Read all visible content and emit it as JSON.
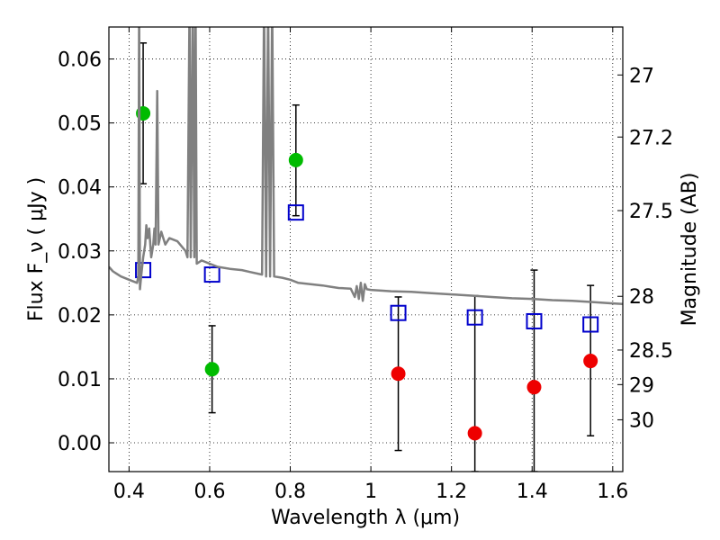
{
  "chart_data": {
    "type": "scatter",
    "xlabel": "Wavelength  λ (μm)",
    "ylabel": "Flux  F_ν  ( μJy )",
    "ylabel_right": "Magnitude (AB)",
    "xlim": [
      0.35,
      1.625
    ],
    "ylim": [
      -0.0045,
      0.065
    ],
    "grid": true,
    "x_ticks": [
      0.4,
      0.6,
      0.8,
      1.0,
      1.2,
      1.4,
      1.6
    ],
    "x_tick_labels": [
      "0.4",
      "0.6",
      "0.8",
      "1",
      "1.2",
      "1.4",
      "1.6"
    ],
    "y_ticks": [
      0.0,
      0.01,
      0.02,
      0.03,
      0.04,
      0.05,
      0.06
    ],
    "y_tick_labels": [
      "0.00",
      "0.01",
      "0.02",
      "0.03",
      "0.04",
      "0.05",
      "0.06"
    ],
    "right_ticks": [
      {
        "label": "27",
        "flux": 0.0575
      },
      {
        "label": "27.2",
        "flux": 0.0478
      },
      {
        "label": "27.5",
        "flux": 0.0363
      },
      {
        "label": "28",
        "flux": 0.0229
      },
      {
        "label": "28.5",
        "flux": 0.0145
      },
      {
        "label": "29",
        "flux": 0.0091
      },
      {
        "label": "30",
        "flux": 0.0036
      }
    ],
    "series": [
      {
        "marker": "circle",
        "color": "#00bb00",
        "points": [
          {
            "x": 0.435,
            "y": 0.0515,
            "yerr_low": 0.0405,
            "yerr_high": 0.0625
          },
          {
            "x": 0.606,
            "y": 0.0115,
            "yerr_low": 0.0047,
            "yerr_high": 0.0183
          },
          {
            "x": 0.814,
            "y": 0.0442,
            "yerr_low": 0.0355,
            "yerr_high": 0.0528
          }
        ]
      },
      {
        "marker": "circle",
        "color": "#ee0000",
        "points": [
          {
            "x": 1.068,
            "y": 0.0108,
            "yerr_low": -0.0012,
            "yerr_high": 0.0228
          },
          {
            "x": 1.258,
            "y": 0.0015,
            "yerr_low": -0.0045,
            "yerr_high": 0.023
          },
          {
            "x": 1.405,
            "y": 0.0087,
            "yerr_low": -0.0045,
            "yerr_high": 0.027
          },
          {
            "x": 1.545,
            "y": 0.0128,
            "yerr_low": 0.0011,
            "yerr_high": 0.0246
          }
        ]
      },
      {
        "marker": "open-square",
        "color": "#0000cc",
        "points": [
          {
            "x": 0.435,
            "y": 0.027
          },
          {
            "x": 0.606,
            "y": 0.0263
          },
          {
            "x": 0.814,
            "y": 0.036
          },
          {
            "x": 1.068,
            "y": 0.0203
          },
          {
            "x": 1.258,
            "y": 0.0196
          },
          {
            "x": 1.405,
            "y": 0.019
          },
          {
            "x": 1.545,
            "y": 0.0185
          }
        ]
      },
      {
        "type": "line",
        "color": "#808080",
        "points": [
          [
            0.35,
            0.0275
          ],
          [
            0.36,
            0.0268
          ],
          [
            0.38,
            0.026
          ],
          [
            0.4,
            0.0255
          ],
          [
            0.42,
            0.025
          ],
          [
            0.423,
            0.026
          ],
          [
            0.425,
            0.069
          ],
          [
            0.427,
            0.024
          ],
          [
            0.43,
            0.026
          ],
          [
            0.435,
            0.029
          ],
          [
            0.44,
            0.031
          ],
          [
            0.443,
            0.034
          ],
          [
            0.446,
            0.032
          ],
          [
            0.45,
            0.0335
          ],
          [
            0.455,
            0.029
          ],
          [
            0.46,
            0.031
          ],
          [
            0.463,
            0.0335
          ],
          [
            0.466,
            0.031
          ],
          [
            0.47,
            0.055
          ],
          [
            0.473,
            0.031
          ],
          [
            0.48,
            0.033
          ],
          [
            0.49,
            0.031
          ],
          [
            0.5,
            0.032
          ],
          [
            0.52,
            0.0315
          ],
          [
            0.54,
            0.03
          ],
          [
            0.545,
            0.029
          ],
          [
            0.55,
            0.069
          ],
          [
            0.553,
            0.029
          ],
          [
            0.558,
            0.069
          ],
          [
            0.562,
            0.029
          ],
          [
            0.565,
            0.069
          ],
          [
            0.568,
            0.028
          ],
          [
            0.58,
            0.0285
          ],
          [
            0.6,
            0.028
          ],
          [
            0.62,
            0.0275
          ],
          [
            0.65,
            0.0272
          ],
          [
            0.68,
            0.027
          ],
          [
            0.7,
            0.0267
          ],
          [
            0.73,
            0.0263
          ],
          [
            0.735,
            0.069
          ],
          [
            0.74,
            0.026
          ],
          [
            0.745,
            0.069
          ],
          [
            0.75,
            0.026
          ],
          [
            0.755,
            0.069
          ],
          [
            0.76,
            0.026
          ],
          [
            0.78,
            0.0258
          ],
          [
            0.8,
            0.0255
          ],
          [
            0.82,
            0.025
          ],
          [
            0.85,
            0.0248
          ],
          [
            0.88,
            0.0246
          ],
          [
            0.9,
            0.0244
          ],
          [
            0.92,
            0.0242
          ],
          [
            0.95,
            0.0241
          ],
          [
            0.96,
            0.0228
          ],
          [
            0.965,
            0.0245
          ],
          [
            0.97,
            0.0225
          ],
          [
            0.975,
            0.025
          ],
          [
            0.98,
            0.0222
          ],
          [
            0.985,
            0.0248
          ],
          [
            0.99,
            0.024
          ],
          [
            1.0,
            0.0239
          ],
          [
            1.05,
            0.0237
          ],
          [
            1.1,
            0.0236
          ],
          [
            1.15,
            0.0234
          ],
          [
            1.2,
            0.0232
          ],
          [
            1.25,
            0.023
          ],
          [
            1.3,
            0.0228
          ],
          [
            1.35,
            0.0226
          ],
          [
            1.4,
            0.0225
          ],
          [
            1.45,
            0.0223
          ],
          [
            1.5,
            0.0222
          ],
          [
            1.55,
            0.022
          ],
          [
            1.6,
            0.0218
          ],
          [
            1.625,
            0.0217
          ]
        ]
      }
    ]
  }
}
